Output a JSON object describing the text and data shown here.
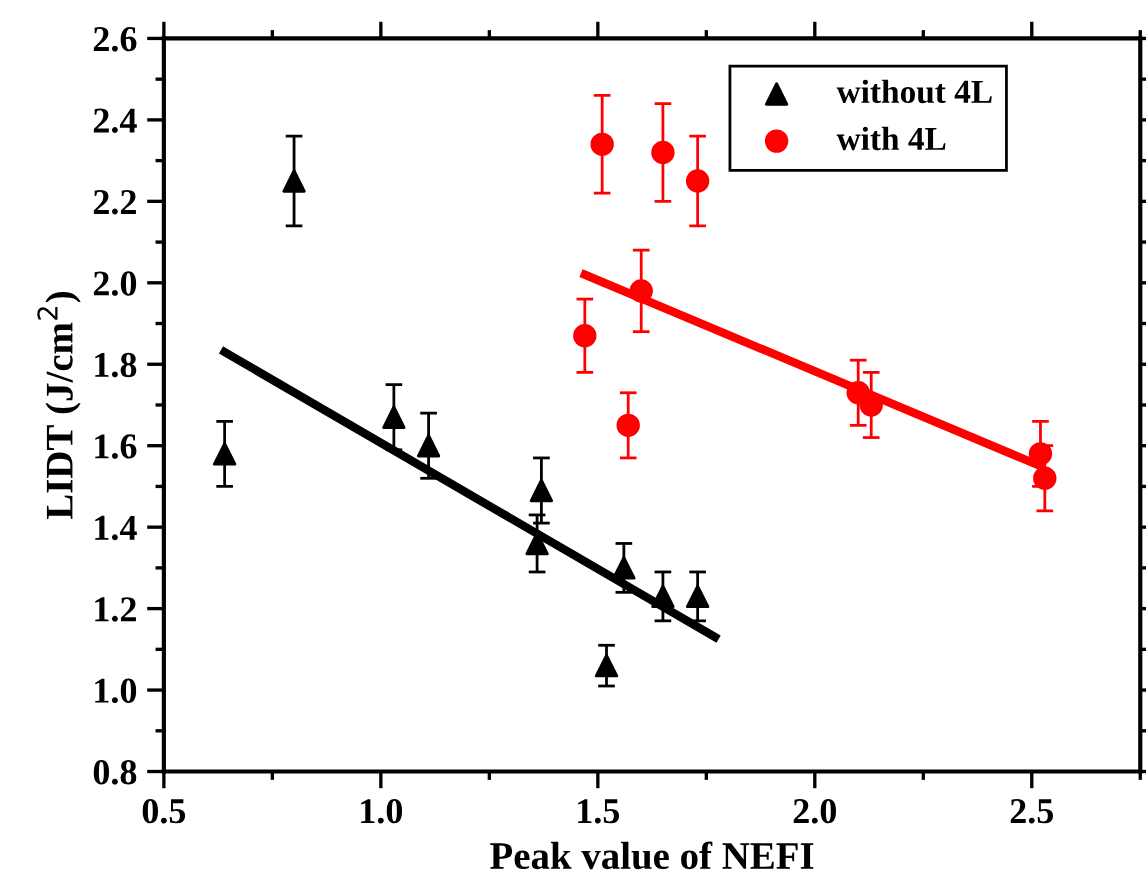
{
  "chart_data": {
    "type": "scatter",
    "xlabel": "Peak value of NEFI",
    "ylabel": "LIDT (J/cm$^{2}$)",
    "xlim": [
      0.5,
      2.75
    ],
    "ylim": [
      0.8,
      2.6
    ],
    "xticks": [
      {
        "value": 0.5,
        "label": "0.5"
      },
      {
        "value": 1.0,
        "label": "1.0"
      },
      {
        "value": 1.5,
        "label": "1.5"
      },
      {
        "value": 2.0,
        "label": "2.0"
      },
      {
        "value": 2.5,
        "label": "2.5"
      }
    ],
    "yticks": [
      {
        "value": 0.8,
        "label": "0.8"
      },
      {
        "value": 1.0,
        "label": "1.0"
      },
      {
        "value": 1.2,
        "label": "1.2"
      },
      {
        "value": 1.4,
        "label": "1.4"
      },
      {
        "value": 1.6,
        "label": "1.6"
      },
      {
        "value": 1.8,
        "label": "1.8"
      },
      {
        "value": 2.0,
        "label": "2.0"
      },
      {
        "value": 2.2,
        "label": "2.2"
      },
      {
        "value": 2.4,
        "label": "2.4"
      },
      {
        "value": 2.6,
        "label": "2.6"
      }
    ],
    "grid": false,
    "legend": "top right",
    "series": [
      {
        "name": "without 4L",
        "marker": "triangle",
        "color": "#000000",
        "x": [
          0.64,
          0.8,
          1.03,
          1.11,
          1.36,
          1.37,
          1.52,
          1.56,
          1.65,
          1.73
        ],
        "values": [
          1.58,
          2.25,
          1.67,
          1.6,
          1.36,
          1.49,
          1.06,
          1.3,
          1.23,
          1.23
        ],
        "errors": [
          0.08,
          0.11,
          0.08,
          0.08,
          0.07,
          0.08,
          0.05,
          0.06,
          0.06,
          0.06
        ]
      },
      {
        "name": "with 4L",
        "marker": "circle",
        "color": "#ff0000",
        "x": [
          1.47,
          1.51,
          1.57,
          1.6,
          1.65,
          1.73,
          2.1,
          2.13,
          2.52,
          2.53
        ],
        "values": [
          1.87,
          2.34,
          1.65,
          1.98,
          2.32,
          2.25,
          1.73,
          1.7,
          1.58,
          1.52
        ],
        "errors": [
          0.09,
          0.12,
          0.08,
          0.1,
          0.12,
          0.11,
          0.08,
          0.08,
          0.08,
          0.08
        ]
      },
      {
        "type": "line",
        "color": "#000000",
        "line_style": "solid",
        "x": [
          0.64,
          1.77
        ],
        "values": [
          1.83,
          1.13
        ]
      },
      {
        "type": "line",
        "color": "#ff0000",
        "line_style": "solid",
        "x": [
          1.47,
          2.52
        ],
        "values": [
          2.02,
          1.55
        ]
      }
    ]
  }
}
